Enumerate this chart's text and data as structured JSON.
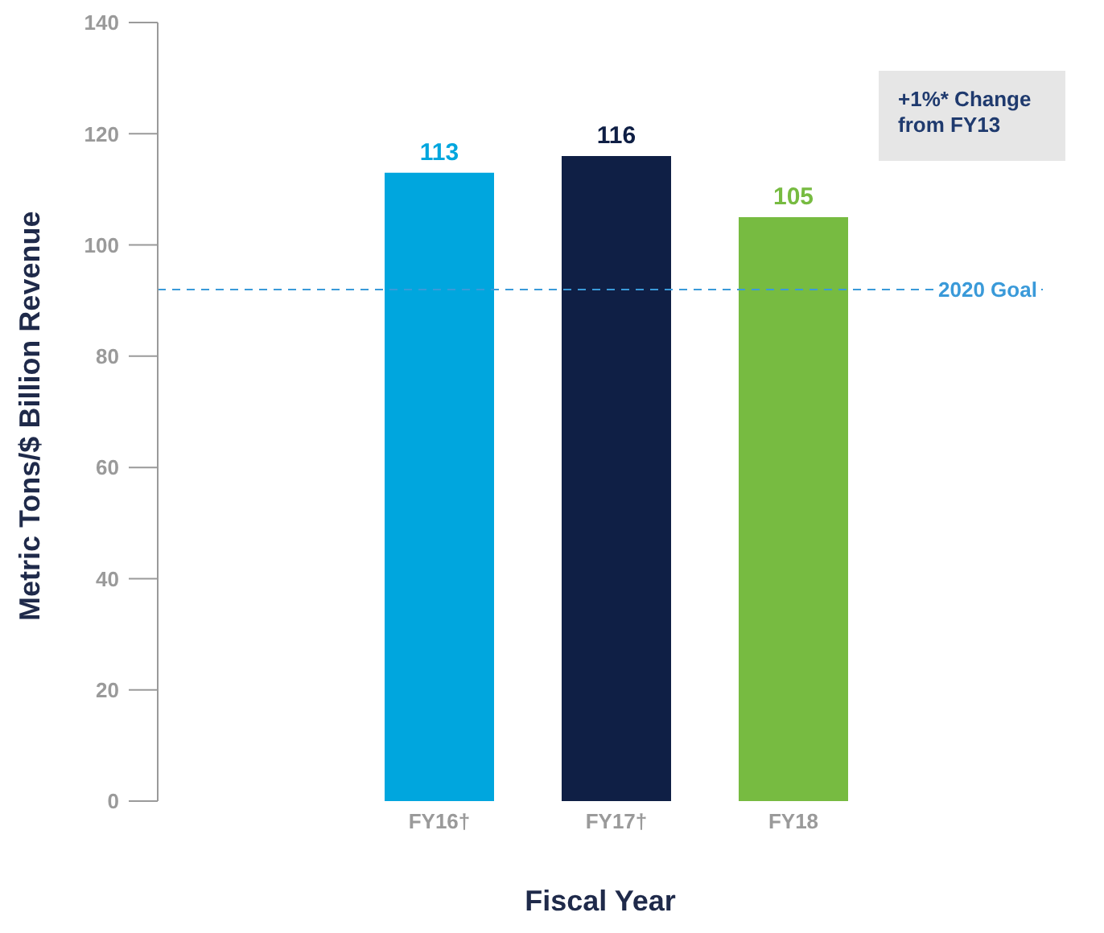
{
  "chart_data": {
    "type": "bar",
    "categories": [
      "FY16†",
      "FY17†",
      "FY18"
    ],
    "values": [
      113,
      116,
      105
    ],
    "colors": [
      "#00a6de",
      "#0f1f45",
      "#77bb41"
    ],
    "xlabel": "Fiscal Year",
    "ylabel": "Metric Tons/$ Billion Revenue",
    "ylim": [
      0,
      140
    ],
    "yticks": [
      0,
      20,
      40,
      60,
      80,
      100,
      120,
      140
    ],
    "data_labels": true,
    "ref_lines": [
      {
        "axis": "y",
        "value": 92,
        "label": "2020 Goal",
        "color": "#3a9ad9",
        "line_style": "dashed"
      }
    ],
    "annotations": [
      "+1%* Change from FY13"
    ],
    "grid": false,
    "legend": false
  }
}
